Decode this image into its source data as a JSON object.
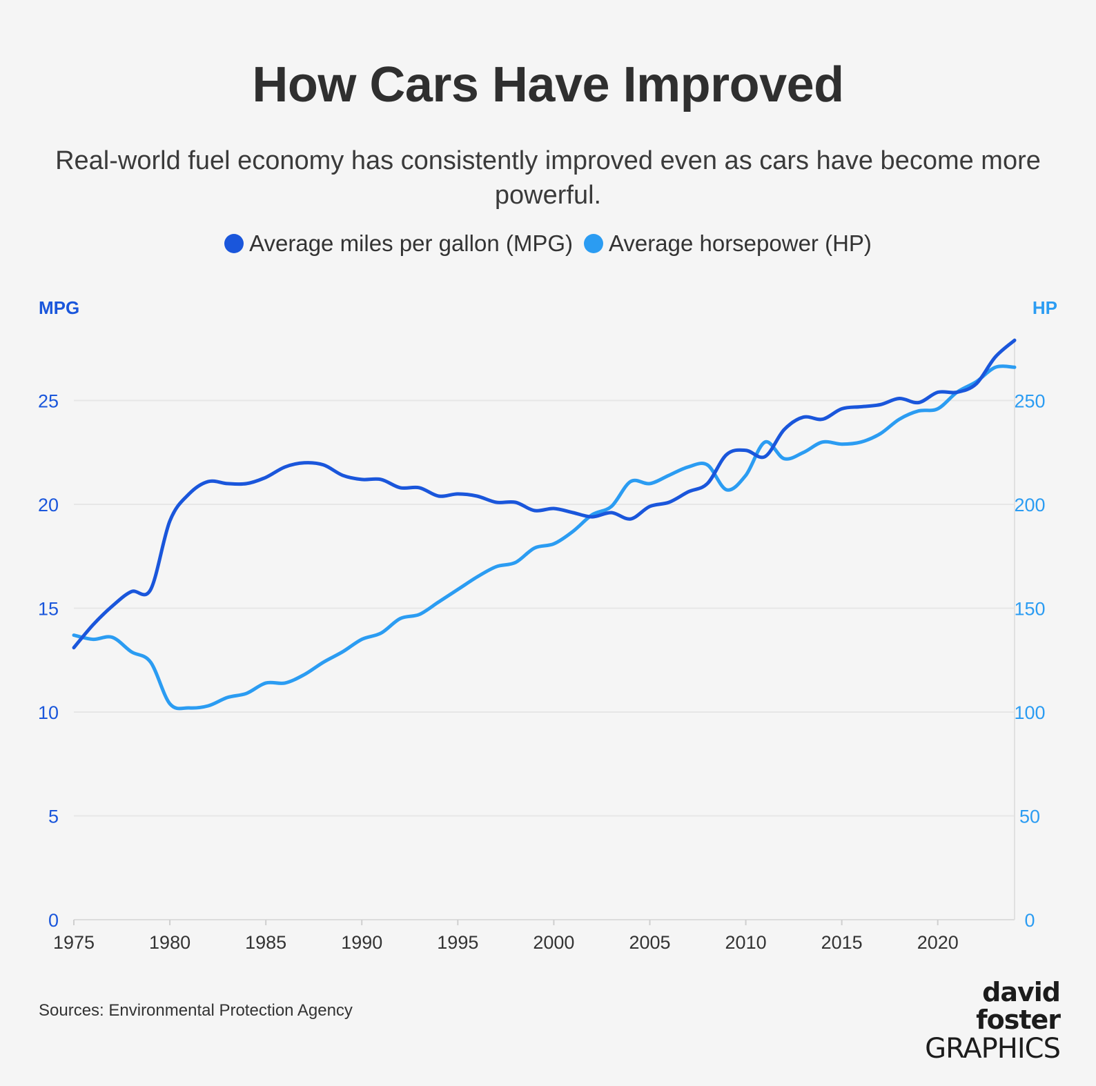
{
  "title": "How Cars Have Improved",
  "subtitle": "Real-world fuel economy has consistently improved even as cars have become more powerful.",
  "legend": [
    {
      "label": "Average miles per gallon (MPG)",
      "color": "#1a56db"
    },
    {
      "label": "Average horsepower (HP)",
      "color": "#2b9cf2"
    }
  ],
  "source": "Sources: Environmental Protection Agency",
  "logo": {
    "line1": "david foster",
    "line2": "GRAPHICS"
  },
  "chart_data": {
    "type": "line",
    "x": [
      1975,
      1976,
      1977,
      1978,
      1979,
      1980,
      1981,
      1982,
      1983,
      1984,
      1985,
      1986,
      1987,
      1988,
      1989,
      1990,
      1991,
      1992,
      1993,
      1994,
      1995,
      1996,
      1997,
      1998,
      1999,
      2000,
      2001,
      2002,
      2003,
      2004,
      2005,
      2006,
      2007,
      2008,
      2009,
      2010,
      2011,
      2012,
      2013,
      2014,
      2015,
      2016,
      2017,
      2018,
      2019,
      2020,
      2021,
      2022,
      2023,
      2024
    ],
    "xlim": [
      1975,
      2024
    ],
    "xticks": [
      1975,
      1980,
      1985,
      1990,
      1995,
      2000,
      2005,
      2010,
      2015,
      2020
    ],
    "left_axis": {
      "label": "MPG",
      "ylim": [
        0,
        30
      ],
      "ticks": [
        0,
        5,
        10,
        15,
        20,
        25
      ]
    },
    "right_axis": {
      "label": "HP",
      "ylim": [
        0,
        300
      ],
      "ticks": [
        0,
        50,
        100,
        150,
        200,
        250
      ]
    },
    "grid": true,
    "legend_position": "top-center",
    "series": [
      {
        "name": "Average miles per gallon (MPG)",
        "axis": "left",
        "color": "#1a56db",
        "values": [
          13.1,
          14.2,
          15.1,
          15.8,
          15.9,
          19.2,
          20.5,
          21.1,
          21.0,
          21.0,
          21.3,
          21.8,
          22.0,
          21.9,
          21.4,
          21.2,
          21.2,
          20.8,
          20.8,
          20.4,
          20.5,
          20.4,
          20.1,
          20.1,
          19.7,
          19.8,
          19.6,
          19.4,
          19.6,
          19.3,
          19.9,
          20.1,
          20.6,
          21.0,
          22.4,
          22.6,
          22.3,
          23.6,
          24.2,
          24.1,
          24.6,
          24.7,
          24.8,
          25.1,
          24.9,
          25.4,
          25.4,
          25.8,
          27.1,
          27.9
        ]
      },
      {
        "name": "Average horsepower (HP)",
        "axis": "right",
        "color": "#2b9cf2",
        "values": [
          137,
          135,
          136,
          129,
          124,
          104,
          102,
          103,
          107,
          109,
          114,
          114,
          118,
          124,
          129,
          135,
          138,
          145,
          147,
          153,
          159,
          165,
          170,
          172,
          179,
          181,
          187,
          195,
          199,
          211,
          210,
          214,
          218,
          219,
          207,
          214,
          230,
          222,
          225,
          230,
          229,
          230,
          234,
          241,
          245,
          246,
          254,
          259,
          266,
          266
        ]
      }
    ]
  }
}
